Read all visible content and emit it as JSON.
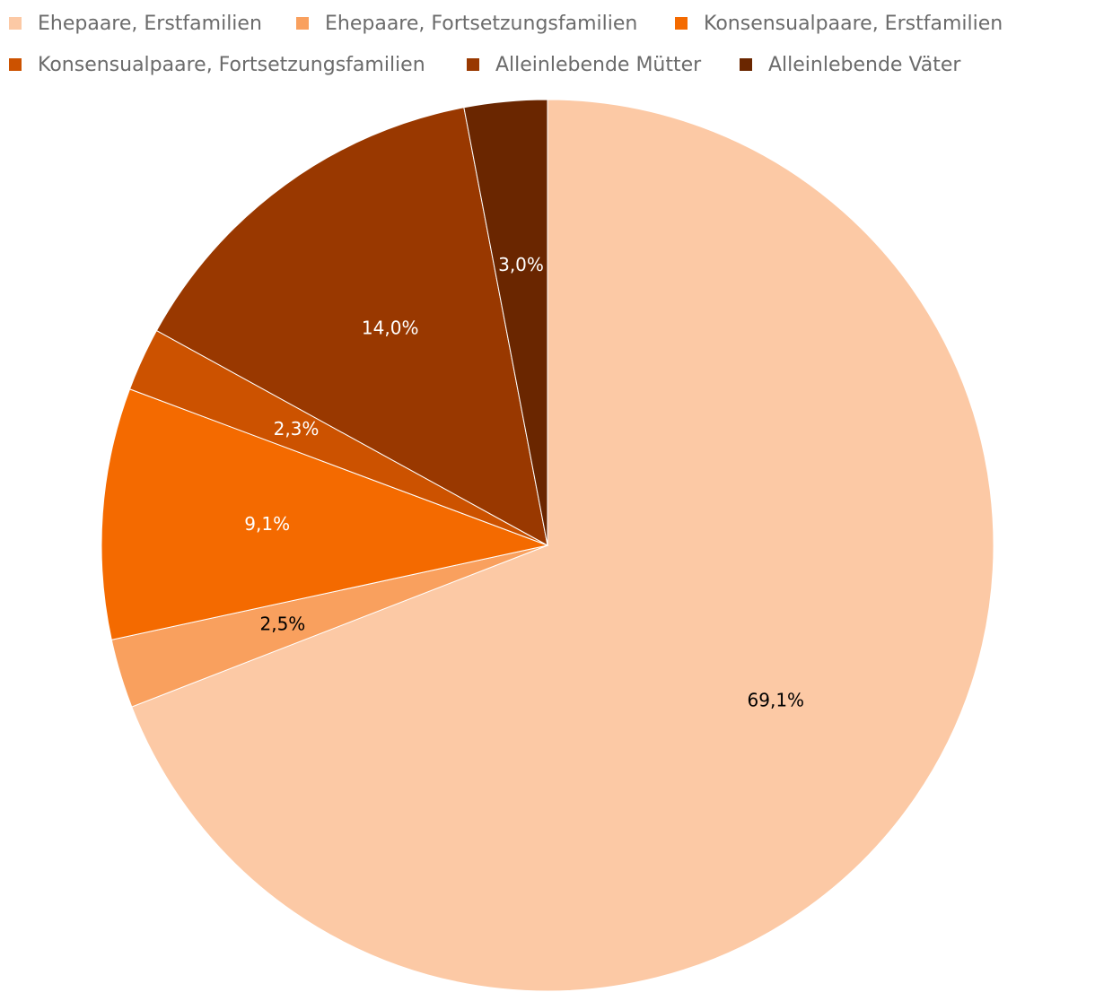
{
  "chart_data": {
    "type": "pie",
    "title": "",
    "legend_position": "top",
    "start_angle_deg": 0,
    "direction": "clockwise",
    "slices": [
      {
        "name": "Ehepaare, Erstfamilien",
        "value": 69.1,
        "label": "69,1%",
        "color": "#fcc9a5",
        "label_color": "#000000"
      },
      {
        "name": "Ehepaare, Fortsetzungsfamilien",
        "value": 2.5,
        "label": "2,5%",
        "color": "#f9a05e",
        "label_color": "#000000"
      },
      {
        "name": "Konsensualpaare, Erstfamilien",
        "value": 9.1,
        "label": "9,1%",
        "color": "#f46a00",
        "label_color": "#ffffff"
      },
      {
        "name": "Konsensualpaare, Fortsetzungsfamilien",
        "value": 2.3,
        "label": "2,3%",
        "color": "#cc5200",
        "label_color": "#ffffff"
      },
      {
        "name": "Alleinlebende Mütter",
        "value": 14.0,
        "label": "14,0%",
        "color": "#993800",
        "label_color": "#ffffff"
      },
      {
        "name": "Alleinlebende Väter",
        "value": 3.0,
        "label": "3,0%",
        "color": "#6a2600",
        "label_color": "#ffffff"
      }
    ]
  }
}
